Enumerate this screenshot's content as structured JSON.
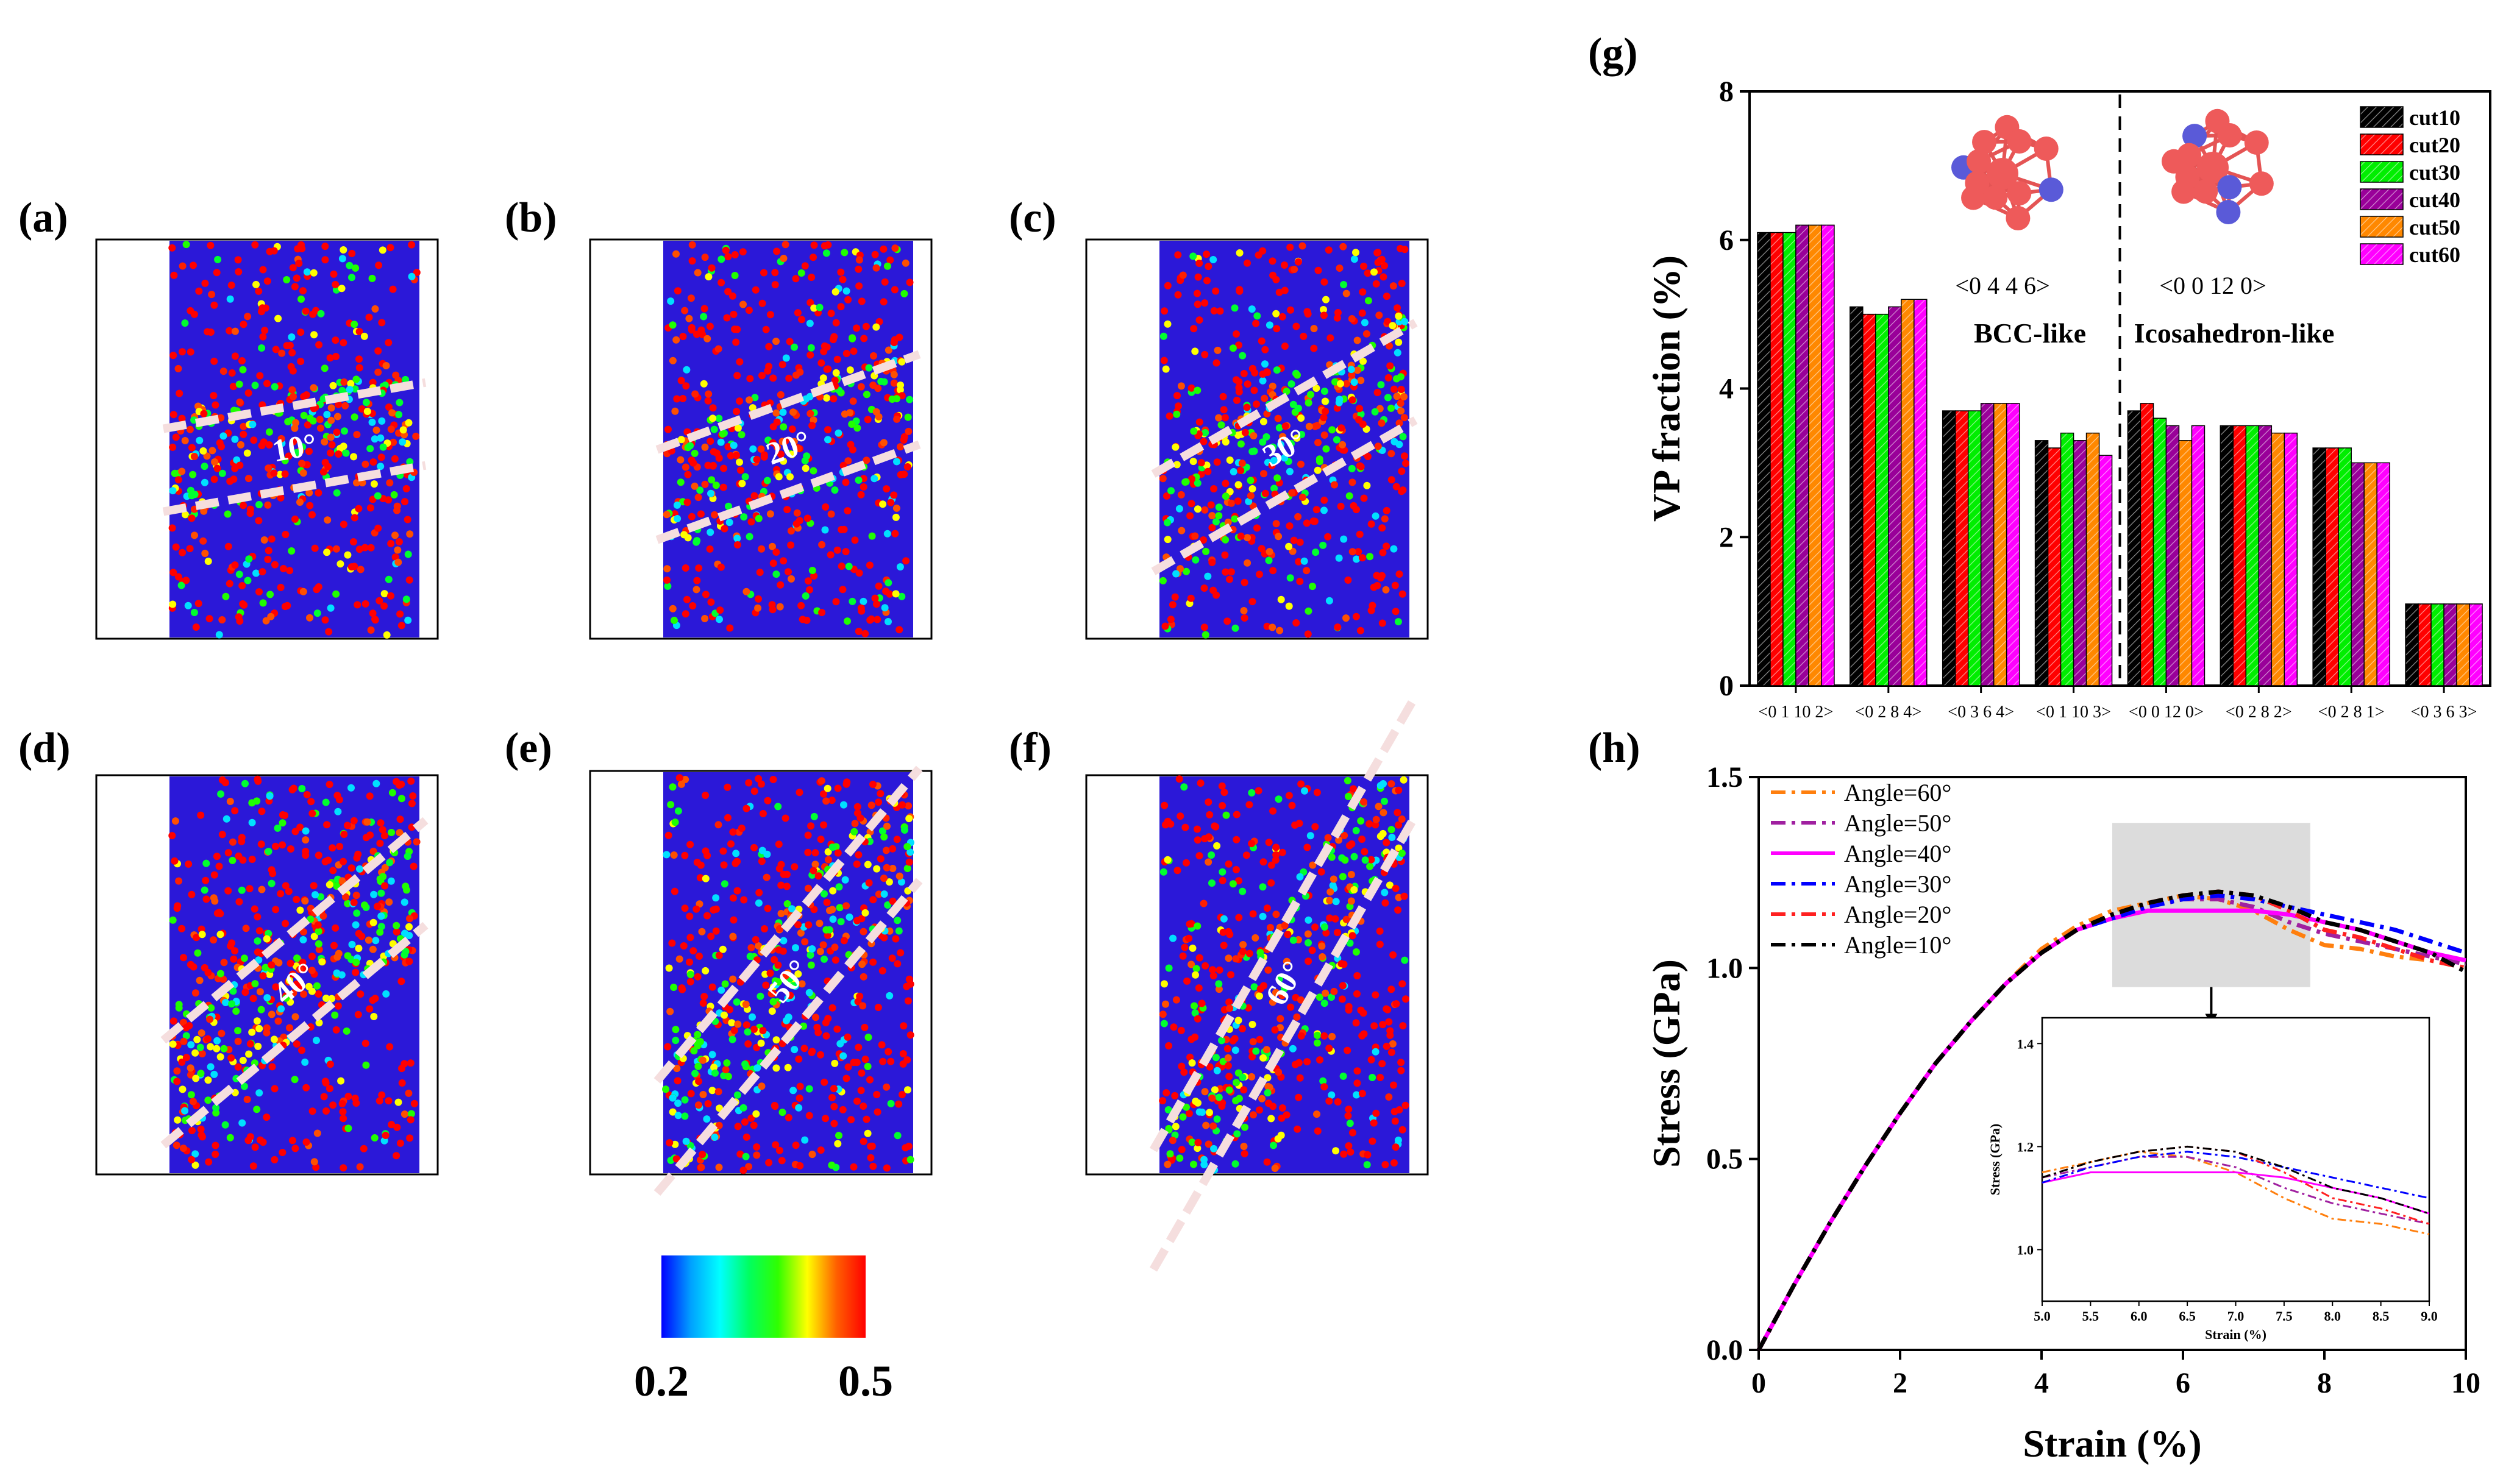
{
  "panels": [
    {
      "label": "(a)",
      "angle": 10,
      "angle_text": "10°"
    },
    {
      "label": "(b)",
      "angle": 20,
      "angle_text": "20°"
    },
    {
      "label": "(c)",
      "angle": 30,
      "angle_text": "30°"
    },
    {
      "label": "(d)",
      "angle": 40,
      "angle_text": "40°"
    },
    {
      "label": "(e)",
      "angle": 50,
      "angle_text": "50°"
    },
    {
      "label": "(f)",
      "angle": 60,
      "angle_text": "60°"
    }
  ],
  "colorbar": {
    "min_label": "0.2",
    "max_label": "0.5",
    "colors": [
      "#0000ff",
      "#00a0ff",
      "#00ffff",
      "#00ff60",
      "#30ff00",
      "#ffff00",
      "#ff6000",
      "#ff0000"
    ]
  },
  "chart_data": [
    {
      "panel_label": "(g)",
      "type": "bar",
      "title": "",
      "ylabel": "VP fraction (%)",
      "xlabel": "",
      "ylim": [
        0,
        8
      ],
      "yticks": [
        "0",
        "2",
        "4",
        "6",
        "8"
      ],
      "categories": [
        "<0 1 10 2>",
        "<0 2 8 4>",
        "<0 3 6 4>",
        "<0 1 10 3>",
        "<0 0 12 0>",
        "<0 2 8 2>",
        "<0 2 8 1>",
        "<0 3 6 3>"
      ],
      "series": [
        {
          "name": "cut10",
          "color": "#000000",
          "values": [
            6.1,
            5.1,
            3.7,
            3.3,
            3.7,
            3.5,
            3.2,
            1.1
          ]
        },
        {
          "name": "cut20",
          "color": "#ff0000",
          "values": [
            6.1,
            5.0,
            3.7,
            3.2,
            3.8,
            3.5,
            3.2,
            1.1
          ]
        },
        {
          "name": "cut30",
          "color": "#00ee00",
          "values": [
            6.1,
            5.0,
            3.7,
            3.4,
            3.6,
            3.5,
            3.2,
            1.1
          ]
        },
        {
          "name": "cut40",
          "color": "#990099",
          "values": [
            6.2,
            5.1,
            3.8,
            3.3,
            3.5,
            3.5,
            3.0,
            1.1
          ]
        },
        {
          "name": "cut50",
          "color": "#ff8800",
          "values": [
            6.2,
            5.2,
            3.8,
            3.4,
            3.3,
            3.4,
            3.0,
            1.1
          ]
        },
        {
          "name": "cut60",
          "color": "#ff00ff",
          "values": [
            6.2,
            5.2,
            3.8,
            3.1,
            3.5,
            3.4,
            3.0,
            1.1
          ]
        }
      ],
      "annotations": {
        "bcc_index": "<0 4 4 6>",
        "bcc_label": "BCC-like",
        "ico_index": "<0 0 12 0>",
        "ico_label": "Icosahedron-like"
      },
      "legend_position": "top-right",
      "divider_between": [
        "<0 1 10 3>",
        "<0 0 12 0>"
      ]
    },
    {
      "panel_label": "(h)",
      "type": "line",
      "title": "",
      "xlabel": "Strain (%)",
      "ylabel": "Stress (GPa)",
      "xlim": [
        0,
        10
      ],
      "ylim": [
        0,
        1.5
      ],
      "xticks": [
        "0",
        "2",
        "4",
        "6",
        "8",
        "10"
      ],
      "yticks": [
        "0.0",
        "0.5",
        "1.0",
        "1.5"
      ],
      "legend_position": "top-left",
      "series": [
        {
          "name": "Angle=60°",
          "color": "#ff7f0e",
          "x": [
            0,
            0.5,
            1,
            1.5,
            2,
            2.5,
            3,
            3.5,
            4,
            4.5,
            5,
            5.5,
            6,
            6.5,
            7,
            7.5,
            8,
            8.5,
            9,
            9.5,
            10
          ],
          "y": [
            0,
            0.17,
            0.33,
            0.48,
            0.62,
            0.75,
            0.86,
            0.96,
            1.05,
            1.11,
            1.15,
            1.17,
            1.19,
            1.18,
            1.15,
            1.1,
            1.06,
            1.05,
            1.03,
            1.02,
            1.0
          ]
        },
        {
          "name": "Angle=50°",
          "color": "#a020a0",
          "x": [
            0,
            0.5,
            1,
            1.5,
            2,
            2.5,
            3,
            3.5,
            4,
            4.5,
            5,
            5.5,
            6,
            6.5,
            7,
            7.5,
            8,
            8.5,
            9,
            9.5,
            10
          ],
          "y": [
            0,
            0.17,
            0.33,
            0.48,
            0.62,
            0.75,
            0.86,
            0.96,
            1.04,
            1.1,
            1.14,
            1.16,
            1.18,
            1.18,
            1.16,
            1.12,
            1.09,
            1.07,
            1.05,
            1.03,
            1.01
          ]
        },
        {
          "name": "Angle=40°",
          "color": "#ff00ff",
          "x": [
            0,
            0.5,
            1,
            1.5,
            2,
            2.5,
            3,
            3.5,
            4,
            4.5,
            5,
            5.5,
            6,
            6.5,
            7,
            7.5,
            8,
            8.5,
            9,
            9.5,
            10
          ],
          "y": [
            0,
            0.17,
            0.33,
            0.48,
            0.62,
            0.75,
            0.86,
            0.96,
            1.04,
            1.1,
            1.13,
            1.15,
            1.15,
            1.15,
            1.15,
            1.14,
            1.12,
            1.1,
            1.07,
            1.04,
            1.02
          ]
        },
        {
          "name": "Angle=30°",
          "color": "#0000ff",
          "x": [
            0,
            0.5,
            1,
            1.5,
            2,
            2.5,
            3,
            3.5,
            4,
            4.5,
            5,
            5.5,
            6,
            6.5,
            7,
            7.5,
            8,
            8.5,
            9,
            9.5,
            10
          ],
          "y": [
            0,
            0.17,
            0.33,
            0.48,
            0.62,
            0.75,
            0.86,
            0.96,
            1.04,
            1.1,
            1.13,
            1.16,
            1.18,
            1.19,
            1.18,
            1.16,
            1.14,
            1.12,
            1.1,
            1.07,
            1.04
          ]
        },
        {
          "name": "Angle=20°",
          "color": "#ff2020",
          "x": [
            0,
            0.5,
            1,
            1.5,
            2,
            2.5,
            3,
            3.5,
            4,
            4.5,
            5,
            5.5,
            6,
            6.5,
            7,
            7.5,
            8,
            8.5,
            9,
            9.5,
            10
          ],
          "y": [
            0,
            0.17,
            0.33,
            0.48,
            0.62,
            0.75,
            0.86,
            0.96,
            1.04,
            1.1,
            1.14,
            1.17,
            1.19,
            1.2,
            1.19,
            1.15,
            1.1,
            1.08,
            1.05,
            1.02,
            1.0
          ]
        },
        {
          "name": "Angle=10°",
          "color": "#000000",
          "x": [
            0,
            0.5,
            1,
            1.5,
            2,
            2.5,
            3,
            3.5,
            4,
            4.5,
            5,
            5.5,
            6,
            6.5,
            7,
            7.5,
            8,
            8.5,
            9,
            9.5,
            10
          ],
          "y": [
            0,
            0.17,
            0.33,
            0.48,
            0.62,
            0.75,
            0.86,
            0.96,
            1.04,
            1.1,
            1.14,
            1.17,
            1.19,
            1.2,
            1.19,
            1.16,
            1.12,
            1.1,
            1.07,
            1.04,
            0.99
          ]
        }
      ],
      "inset": {
        "xlabel": "Strain (%)",
        "ylabel": "Stress (GPa)",
        "xlim": [
          5.0,
          9.0
        ],
        "ylim": [
          0.9,
          1.45
        ],
        "xticks": [
          "5.0",
          "5.5",
          "6.0",
          "6.5",
          "7.0",
          "7.5",
          "8.0",
          "8.5",
          "9.0"
        ],
        "yticks": [
          "1.0",
          "1.2",
          "1.4"
        ]
      }
    }
  ]
}
